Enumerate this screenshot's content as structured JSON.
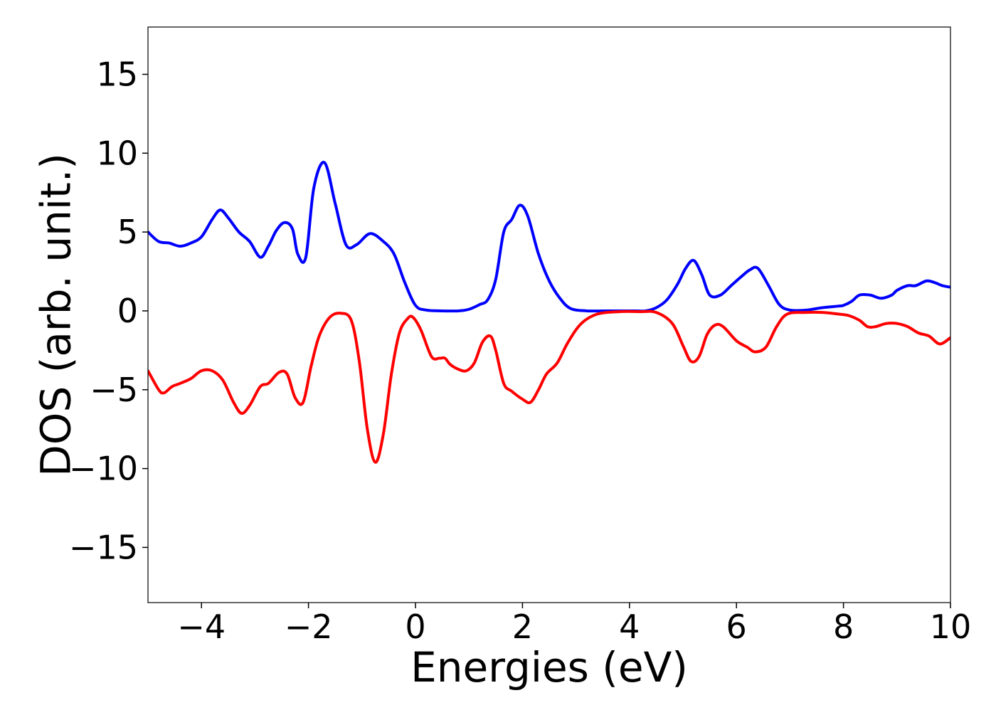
{
  "chart_data": {
    "type": "line",
    "title": "",
    "xlabel": "Energies (eV)",
    "ylabel": "DOS (arb. unit.)",
    "xlim": [
      -5,
      10
    ],
    "ylim": [
      -18.5,
      18
    ],
    "xticks": [
      -4,
      -2,
      0,
      2,
      4,
      6,
      8,
      10
    ],
    "yticks": [
      15,
      10,
      5,
      0,
      -5,
      -10,
      -15
    ],
    "xtick_labels": [
      "−4",
      "−2",
      "0",
      "2",
      "4",
      "6",
      "8",
      "10"
    ],
    "ytick_labels": [
      "15",
      "10",
      "5",
      "0",
      "−5",
      "−10",
      "−15"
    ],
    "grid": false,
    "legend": "none",
    "series": [
      {
        "color": "#0000ff",
        "x": [
          -5.0,
          -4.8,
          -4.6,
          -4.4,
          -4.2,
          -4.0,
          -3.8,
          -3.65,
          -3.5,
          -3.3,
          -3.1,
          -2.9,
          -2.75,
          -2.6,
          -2.45,
          -2.3,
          -2.2,
          -2.05,
          -1.9,
          -1.7,
          -1.5,
          -1.3,
          -1.1,
          -0.85,
          -0.6,
          -0.4,
          -0.2,
          0.0,
          0.2,
          0.5,
          0.8,
          1.0,
          1.2,
          1.35,
          1.5,
          1.65,
          1.8,
          1.95,
          2.1,
          2.3,
          2.5,
          2.7,
          2.9,
          3.2,
          3.5,
          3.8,
          4.1,
          4.3,
          4.5,
          4.7,
          4.9,
          5.05,
          5.2,
          5.35,
          5.5,
          5.7,
          5.9,
          6.1,
          6.25,
          6.4,
          6.6,
          6.8,
          7.0,
          7.3,
          7.6,
          7.9,
          8.0,
          8.15,
          8.3,
          8.5,
          8.7,
          8.9,
          9.0,
          9.2,
          9.35,
          9.55,
          9.7,
          9.85,
          10.0
        ],
        "y": [
          5.0,
          4.4,
          4.3,
          4.1,
          4.3,
          4.7,
          5.8,
          6.4,
          5.9,
          5.0,
          4.4,
          3.4,
          4.1,
          5.1,
          5.6,
          5.2,
          3.6,
          3.4,
          7.8,
          9.4,
          6.8,
          4.2,
          4.2,
          4.9,
          4.4,
          3.6,
          1.8,
          0.35,
          0.05,
          0.0,
          0.0,
          0.1,
          0.4,
          0.7,
          2.0,
          5.0,
          5.8,
          6.7,
          6.0,
          3.6,
          1.9,
          0.8,
          0.15,
          0.0,
          0.0,
          0.0,
          0.0,
          0.0,
          0.2,
          0.7,
          1.7,
          2.7,
          3.2,
          2.3,
          1.0,
          1.0,
          1.6,
          2.2,
          2.6,
          2.7,
          1.6,
          0.4,
          0.05,
          0.05,
          0.2,
          0.3,
          0.35,
          0.6,
          1.0,
          1.0,
          0.8,
          1.0,
          1.3,
          1.6,
          1.6,
          1.9,
          1.8,
          1.6,
          1.5
        ]
      },
      {
        "color": "#ff0000",
        "x": [
          -5.0,
          -4.8,
          -4.7,
          -4.55,
          -4.4,
          -4.2,
          -4.0,
          -3.8,
          -3.6,
          -3.4,
          -3.25,
          -3.1,
          -2.9,
          -2.75,
          -2.55,
          -2.4,
          -2.25,
          -2.1,
          -1.95,
          -1.8,
          -1.6,
          -1.4,
          -1.2,
          -1.05,
          -0.9,
          -0.75,
          -0.6,
          -0.45,
          -0.3,
          -0.15,
          -0.05,
          0.1,
          0.3,
          0.45,
          0.55,
          0.65,
          0.8,
          0.95,
          1.1,
          1.25,
          1.4,
          1.5,
          1.65,
          1.8,
          2.0,
          2.15,
          2.3,
          2.45,
          2.65,
          2.85,
          3.1,
          3.4,
          3.8,
          4.2,
          4.5,
          4.8,
          5.0,
          5.15,
          5.3,
          5.45,
          5.6,
          5.75,
          6.0,
          6.2,
          6.35,
          6.55,
          6.75,
          6.95,
          7.3,
          7.6,
          7.9,
          8.1,
          8.3,
          8.45,
          8.6,
          8.8,
          9.0,
          9.2,
          9.4,
          9.6,
          9.8,
          10.0
        ],
        "y": [
          -3.8,
          -5.0,
          -5.2,
          -4.8,
          -4.6,
          -4.3,
          -3.8,
          -3.8,
          -4.4,
          -5.8,
          -6.5,
          -6.0,
          -4.8,
          -4.6,
          -3.9,
          -4.0,
          -5.5,
          -5.8,
          -3.5,
          -1.6,
          -0.4,
          -0.15,
          -0.6,
          -3.2,
          -7.5,
          -9.6,
          -7.8,
          -4.0,
          -1.4,
          -0.5,
          -0.4,
          -1.2,
          -2.9,
          -3.0,
          -3.0,
          -3.4,
          -3.7,
          -3.8,
          -3.3,
          -2.0,
          -1.6,
          -2.5,
          -4.6,
          -5.1,
          -5.6,
          -5.8,
          -5.0,
          -4.0,
          -3.3,
          -2.0,
          -0.8,
          -0.2,
          -0.05,
          -0.05,
          -0.1,
          -0.8,
          -2.2,
          -3.2,
          -2.9,
          -1.5,
          -0.9,
          -1.0,
          -1.9,
          -2.3,
          -2.6,
          -2.3,
          -1.0,
          -0.2,
          -0.1,
          -0.1,
          -0.2,
          -0.3,
          -0.6,
          -1.0,
          -1.0,
          -0.8,
          -0.8,
          -1.0,
          -1.4,
          -1.6,
          -2.1,
          -1.7
        ]
      }
    ]
  }
}
